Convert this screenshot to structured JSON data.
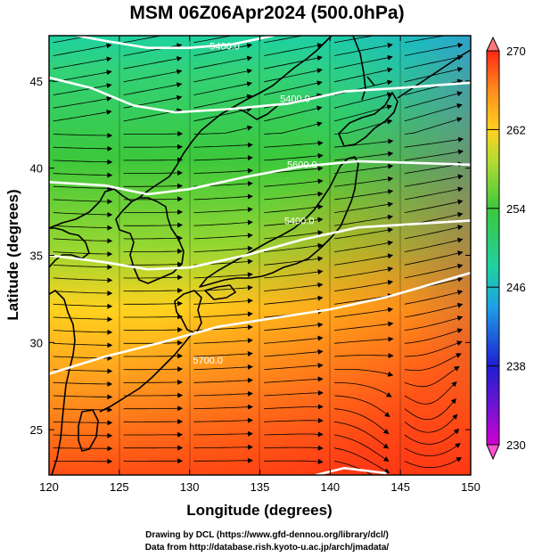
{
  "title": "MSM 06Z06Apr2024 (500.0hPa)",
  "x_axis": {
    "label": "Longitude (degrees)",
    "ticks": [
      "120",
      "125",
      "130",
      "135",
      "140",
      "145",
      "150"
    ],
    "range": [
      120,
      150
    ]
  },
  "y_axis": {
    "label": "Latitude  (degrees)",
    "ticks": [
      "25",
      "30",
      "35",
      "40",
      "45"
    ],
    "range": [
      22.4,
      47.6
    ]
  },
  "colorbar": {
    "ticks": [
      "270",
      "262",
      "254",
      "246",
      "238",
      "230"
    ],
    "min": 230,
    "max": 270,
    "colors": [
      "#d200d2",
      "#1e1ed2",
      "#1ea0e6",
      "#1ed2a0",
      "#3cc83c",
      "#b4dc32",
      "#ffd21e",
      "#ff8c1e",
      "#ff2814",
      "#ff7878"
    ]
  },
  "contours": [
    {
      "label": "5700.0",
      "lon": 131.3,
      "lat": 28.8
    },
    {
      "label": "5400.0",
      "lon": 137.8,
      "lat": 36.8
    },
    {
      "label": "5600.0",
      "lon": 138.0,
      "lat": 40.0
    },
    {
      "label": "5400.0",
      "lon": 137.5,
      "lat": 43.8
    },
    {
      "label": "5400.0",
      "lon": 132.5,
      "lat": 46.8
    }
  ],
  "contour_lines": [
    [
      [
        120,
        28.2
      ],
      [
        124,
        29.2
      ],
      [
        128,
        30.0
      ],
      [
        132,
        30.9
      ],
      [
        136,
        31.4
      ],
      [
        140,
        31.9
      ],
      [
        144,
        32.6
      ],
      [
        150,
        34.0
      ]
    ],
    [
      [
        120,
        35.0
      ],
      [
        124,
        34.6
      ],
      [
        127,
        34.2
      ],
      [
        130,
        34.3
      ],
      [
        134,
        35.0
      ],
      [
        138,
        35.9
      ],
      [
        142,
        36.6
      ],
      [
        146,
        36.8
      ],
      [
        150,
        37.0
      ]
    ],
    [
      [
        120,
        39.2
      ],
      [
        124,
        39.0
      ],
      [
        127,
        38.5
      ],
      [
        130,
        38.8
      ],
      [
        134,
        39.5
      ],
      [
        138,
        40.1
      ],
      [
        142,
        40.4
      ],
      [
        146,
        40.3
      ],
      [
        150,
        40.2
      ]
    ],
    [
      [
        120,
        45.2
      ],
      [
        123,
        44.6
      ],
      [
        126,
        43.6
      ],
      [
        129,
        43.2
      ],
      [
        133,
        43.4
      ],
      [
        137,
        43.7
      ],
      [
        141,
        44.4
      ],
      [
        145,
        44.6
      ],
      [
        150,
        44.9
      ]
    ],
    [
      [
        122,
        47.6
      ],
      [
        124,
        47.3
      ],
      [
        127,
        46.9
      ],
      [
        130,
        46.9
      ],
      [
        133,
        47.1
      ],
      [
        136,
        47.6
      ]
    ],
    [
      [
        139,
        22.4
      ],
      [
        141,
        22.8
      ],
      [
        144,
        22.5
      ]
    ]
  ],
  "credits": {
    "line1": "Drawing by DCL (https://www.gfd-dennou.org/library/dcl/)",
    "line2": "Data from http://database.rish.kyoto-u.ac.jp/arch/jmadata/"
  }
}
